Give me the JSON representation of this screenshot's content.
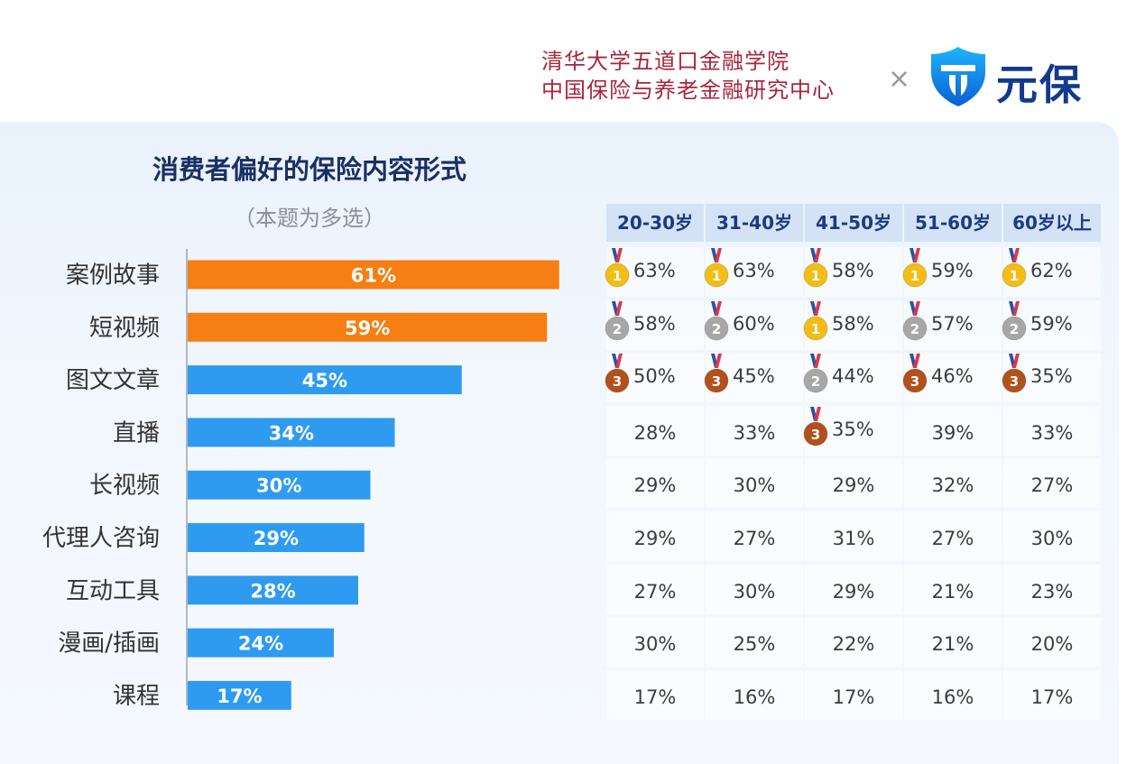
{
  "header": {
    "org_line1": "清华大学五道口金融学院",
    "org_line2": "中国保险与养老金融研究中心",
    "times": "×",
    "brand_name": "元保",
    "brand_icon": "shield-logo-icon"
  },
  "colors": {
    "top_bar": "#f67e13",
    "bar": "#2e9bf0",
    "title": "#1a2f63",
    "org": "#a8263e",
    "gold": "#f3bd16",
    "silver": "#a7a7a7",
    "bronze": "#b1511c"
  },
  "chart_data": [
    {
      "type": "bar",
      "orientation": "horizontal",
      "title": "消费者偏好的保险内容形式",
      "subtitle": "（本题为多选）",
      "categories": [
        "案例故事",
        "短视频",
        "图文文章",
        "直播",
        "长视频",
        "代理人咨询",
        "互动工具",
        "漫画/插画",
        "课程"
      ],
      "values": [
        61,
        59,
        45,
        34,
        30,
        29,
        28,
        24,
        17
      ],
      "value_labels": [
        "61%",
        "59%",
        "45%",
        "34%",
        "30%",
        "29%",
        "28%",
        "24%",
        "17%"
      ],
      "highlight_top": 2
    },
    {
      "type": "table",
      "columns": [
        "20-30岁",
        "31-40岁",
        "41-50岁",
        "51-60岁",
        "60岁以上"
      ],
      "rows": [
        [
          "63%",
          "63%",
          "58%",
          "59%",
          "62%"
        ],
        [
          "58%",
          "60%",
          "58%",
          "57%",
          "59%"
        ],
        [
          "50%",
          "45%",
          "44%",
          "46%",
          "35%"
        ],
        [
          "28%",
          "33%",
          "35%",
          "39%",
          "33%"
        ],
        [
          "29%",
          "30%",
          "29%",
          "32%",
          "27%"
        ],
        [
          "29%",
          "27%",
          "31%",
          "27%",
          "30%"
        ],
        [
          "27%",
          "30%",
          "29%",
          "21%",
          "23%"
        ],
        [
          "30%",
          "25%",
          "22%",
          "21%",
          "20%"
        ],
        [
          "17%",
          "16%",
          "17%",
          "16%",
          "17%"
        ]
      ],
      "medals": [
        [
          1,
          1,
          1,
          1,
          1
        ],
        [
          2,
          2,
          1,
          2,
          2
        ],
        [
          3,
          3,
          2,
          3,
          3
        ],
        [
          0,
          0,
          3,
          0,
          0
        ],
        [
          0,
          0,
          0,
          0,
          0
        ],
        [
          0,
          0,
          0,
          0,
          0
        ],
        [
          0,
          0,
          0,
          0,
          0
        ],
        [
          0,
          0,
          0,
          0,
          0
        ],
        [
          0,
          0,
          0,
          0,
          0
        ]
      ]
    }
  ]
}
